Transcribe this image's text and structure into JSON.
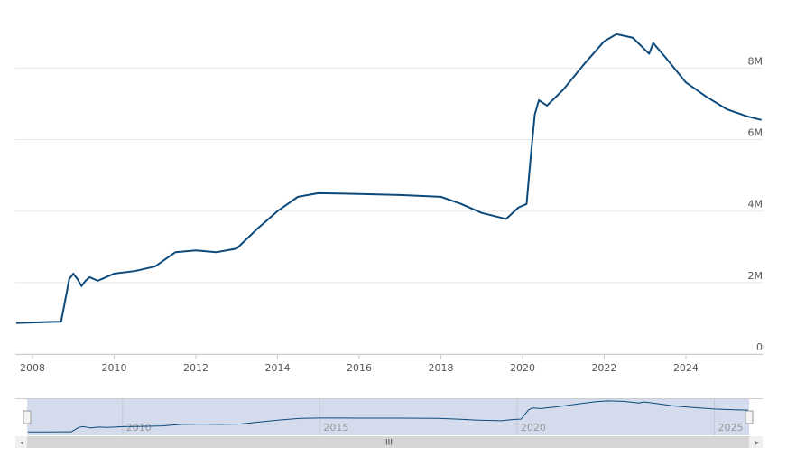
{
  "chart_data": {
    "type": "line",
    "x": [
      2007.6,
      2008.0,
      2008.5,
      2008.7,
      2008.8,
      2008.9,
      2009.0,
      2009.1,
      2009.2,
      2009.3,
      2009.4,
      2009.6,
      2009.8,
      2010.0,
      2010.5,
      2011.0,
      2011.5,
      2012.0,
      2012.5,
      2013.0,
      2013.5,
      2014.0,
      2014.5,
      2015.0,
      2016.0,
      2017.0,
      2018.0,
      2018.5,
      2019.0,
      2019.6,
      2019.9,
      2020.1,
      2020.2,
      2020.3,
      2020.4,
      2020.6,
      2021.0,
      2021.5,
      2022.0,
      2022.3,
      2022.7,
      2023.1,
      2023.2,
      2023.5,
      2024.0,
      2024.5,
      2025.0,
      2025.5,
      2025.85
    ],
    "series": [
      {
        "color": "#0d4a7c",
        "values": [
          870000,
          880000,
          900000,
          905000,
          1500000,
          2100000,
          2250000,
          2100000,
          1900000,
          2050000,
          2150000,
          2050000,
          2150000,
          2250000,
          2320000,
          2450000,
          2850000,
          2900000,
          2850000,
          2950000,
          3500000,
          4000000,
          4400000,
          4500000,
          4480000,
          4450000,
          4400000,
          4200000,
          3950000,
          3780000,
          4100000,
          4200000,
          5500000,
          6700000,
          7100000,
          6950000,
          7400000,
          8100000,
          8750000,
          8950000,
          8850000,
          8400000,
          8700000,
          8300000,
          7600000,
          7200000,
          6850000,
          6650000,
          6550000
        ]
      }
    ],
    "xlim": [
      2007.58,
      2025.88
    ],
    "xticks": [
      2008,
      2010,
      2012,
      2014,
      2016,
      2018,
      2020,
      2022,
      2024
    ],
    "ylim": [
      0,
      9400000
    ],
    "yticks": [
      0,
      {
        "value": 2000000,
        "label": "2M"
      },
      {
        "value": 4000000,
        "label": "4M"
      },
      {
        "value": 6000000,
        "label": "6M"
      },
      {
        "value": 8000000,
        "label": "8M"
      }
    ],
    "grid": true,
    "navigator": {
      "xticks": [
        2010,
        2015,
        2020,
        2025
      ]
    }
  }
}
